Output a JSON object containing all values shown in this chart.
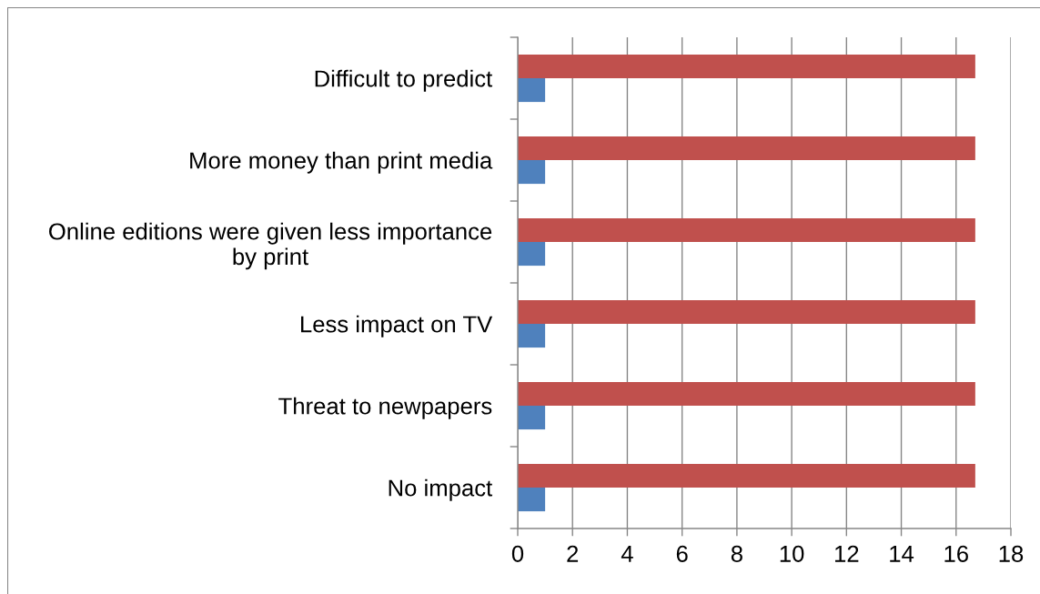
{
  "chart_data": {
    "type": "bar",
    "orientation": "horizontal",
    "categories": [
      "Difficult to predict",
      "More money than print media",
      "Online editions were given less importance\nby print",
      "Less impact on TV",
      "Threat to newpapers",
      "No impact"
    ],
    "series": [
      {
        "color": "#4f81bd",
        "values": [
          1,
          1,
          1,
          1,
          1,
          1
        ]
      },
      {
        "color": "#c0504d",
        "values": [
          16.7,
          16.7,
          16.7,
          16.7,
          16.7,
          16.7
        ]
      }
    ],
    "xlim": [
      0,
      18
    ],
    "xticks": [
      0,
      2,
      4,
      6,
      8,
      10,
      12,
      14,
      16,
      18
    ],
    "grid": "x"
  }
}
